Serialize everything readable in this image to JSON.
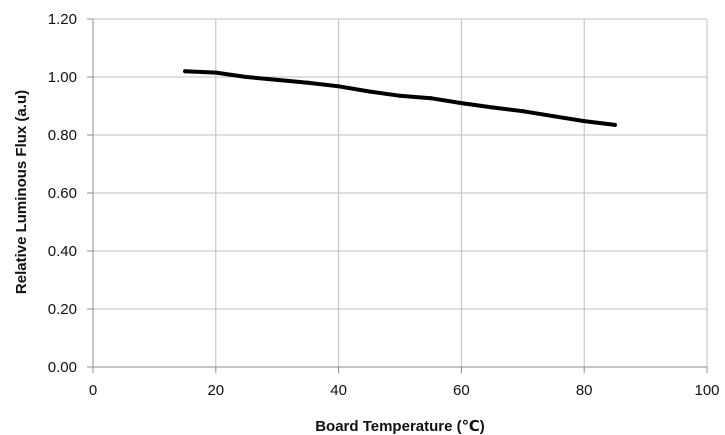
{
  "chart_data": {
    "type": "line",
    "xlabel": "Board Temperature (℃)",
    "ylabel": "Relative Luminous Flux (a.u)",
    "xlim": [
      0,
      100
    ],
    "ylim": [
      0,
      1.2
    ],
    "x_ticks": [
      "0",
      "20",
      "40",
      "60",
      "80",
      "100"
    ],
    "y_ticks": [
      "0.00",
      "0.20",
      "0.40",
      "0.60",
      "0.80",
      "1.00",
      "1.20"
    ],
    "grid": true,
    "series": [
      {
        "x": [
          15,
          20,
          25,
          30,
          35,
          40,
          45,
          50,
          55,
          60,
          65,
          70,
          75,
          80,
          85
        ],
        "y": [
          1.02,
          1.015,
          1.0,
          0.99,
          0.98,
          0.968,
          0.95,
          0.935,
          0.927,
          0.91,
          0.895,
          0.882,
          0.865,
          0.848,
          0.835
        ]
      }
    ],
    "colors": {
      "line": "#000000",
      "grid": "#bfbfbf",
      "axis": "#8c8c8c"
    }
  }
}
